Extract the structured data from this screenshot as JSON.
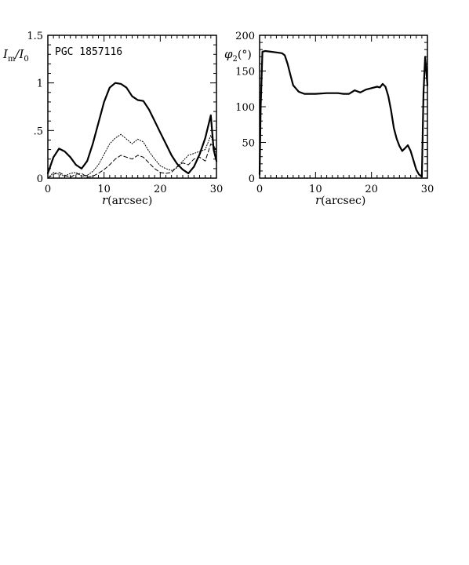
{
  "chart_data": [
    {
      "type": "line",
      "annotation": "PGC 1857116",
      "xlabel": "r(arcsec)",
      "ylabel": "I_m/I_0",
      "xlim": [
        0,
        30
      ],
      "ylim": [
        0,
        1.5
      ],
      "x_ticks": [
        "0",
        "10",
        "20",
        "30"
      ],
      "y_ticks": [
        "0",
        ".5",
        "1",
        "1.5"
      ],
      "series": [
        {
          "style": "solid-thick",
          "x": [
            0,
            1,
            2,
            3,
            4,
            5,
            6,
            7,
            8,
            9,
            10,
            11,
            12,
            13,
            14,
            15,
            16,
            17,
            18,
            19,
            20,
            21,
            22,
            23,
            24,
            25,
            26,
            27,
            28,
            29,
            29.5,
            30
          ],
          "y": [
            0.05,
            0.22,
            0.31,
            0.28,
            0.22,
            0.14,
            0.1,
            0.18,
            0.36,
            0.58,
            0.8,
            0.95,
            1.0,
            0.99,
            0.95,
            0.86,
            0.82,
            0.81,
            0.72,
            0.6,
            0.48,
            0.36,
            0.24,
            0.15,
            0.09,
            0.05,
            0.12,
            0.25,
            0.42,
            0.66,
            0.3,
            0.18
          ]
        },
        {
          "style": "dotted",
          "x": [
            0,
            1,
            2,
            3,
            4,
            5,
            6,
            7,
            8,
            9,
            10,
            11,
            12,
            13,
            14,
            15,
            16,
            17,
            18,
            19,
            20,
            21,
            22,
            23,
            24,
            25,
            26,
            27,
            28,
            29,
            30
          ],
          "y": [
            0.0,
            0.06,
            0.04,
            0.02,
            0.05,
            0.06,
            0.02,
            0.03,
            0.07,
            0.14,
            0.25,
            0.36,
            0.42,
            0.46,
            0.41,
            0.36,
            0.41,
            0.38,
            0.28,
            0.2,
            0.13,
            0.1,
            0.08,
            0.11,
            0.18,
            0.24,
            0.26,
            0.28,
            0.3,
            0.45,
            0.25
          ]
        },
        {
          "style": "dashed",
          "x": [
            0,
            1,
            2,
            3,
            4,
            5,
            6,
            7,
            8,
            9,
            10,
            11,
            12,
            13,
            14,
            15,
            16,
            17,
            18,
            19,
            20,
            21,
            22,
            23,
            24,
            25,
            26,
            27,
            28,
            29,
            30
          ],
          "y": [
            0.0,
            0.04,
            0.06,
            0.03,
            0.01,
            0.04,
            0.05,
            0.01,
            0.02,
            0.05,
            0.09,
            0.14,
            0.2,
            0.24,
            0.22,
            0.2,
            0.24,
            0.22,
            0.16,
            0.1,
            0.06,
            0.05,
            0.06,
            0.12,
            0.16,
            0.14,
            0.2,
            0.22,
            0.18,
            0.36,
            0.3
          ]
        }
      ]
    },
    {
      "type": "line",
      "xlabel": "r(arcsec)",
      "ylabel": "φ2(°)",
      "xlim": [
        0,
        30
      ],
      "ylim": [
        0,
        200
      ],
      "x_ticks": [
        "0",
        "10",
        "20",
        "30"
      ],
      "y_ticks": [
        "0",
        "50",
        "100",
        "150",
        "200"
      ],
      "series": [
        {
          "style": "solid-thick",
          "x": [
            0,
            0.2,
            0.5,
            1,
            2,
            3,
            4,
            4.5,
            5,
            5.5,
            6,
            7,
            8,
            9,
            10,
            12,
            14,
            15,
            16,
            17,
            18,
            19,
            20,
            21,
            21.5,
            22,
            22.5,
            23,
            23.5,
            24,
            24.5,
            25,
            25.5,
            26,
            26.5,
            27,
            27.5,
            28,
            28.5,
            29,
            29.3,
            29.6,
            30
          ],
          "y": [
            5,
            100,
            177,
            178,
            177,
            176,
            175,
            172,
            160,
            145,
            130,
            121,
            118,
            118,
            118,
            119,
            119,
            118,
            118,
            123,
            120,
            124,
            126,
            128,
            127,
            132,
            128,
            115,
            95,
            70,
            55,
            45,
            38,
            42,
            46,
            38,
            25,
            12,
            5,
            2,
            120,
            170,
            130
          ]
        }
      ]
    }
  ]
}
